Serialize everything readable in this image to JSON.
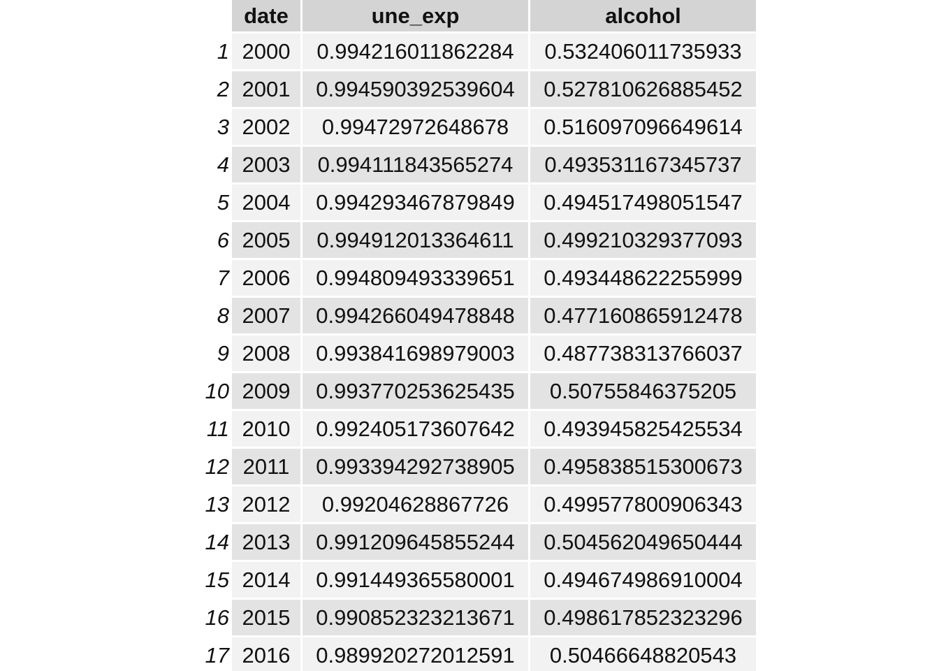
{
  "table": {
    "columns": [
      "date",
      "une_exp",
      "alcohol"
    ],
    "rows": [
      {
        "index": "1",
        "date": "2000",
        "une_exp": "0.994216011862284",
        "alcohol": "0.532406011735933"
      },
      {
        "index": "2",
        "date": "2001",
        "une_exp": "0.994590392539604",
        "alcohol": "0.527810626885452"
      },
      {
        "index": "3",
        "date": "2002",
        "une_exp": "0.99472972648678",
        "alcohol": "0.516097096649614"
      },
      {
        "index": "4",
        "date": "2003",
        "une_exp": "0.994111843565274",
        "alcohol": "0.493531167345737"
      },
      {
        "index": "5",
        "date": "2004",
        "une_exp": "0.994293467879849",
        "alcohol": "0.494517498051547"
      },
      {
        "index": "6",
        "date": "2005",
        "une_exp": "0.994912013364611",
        "alcohol": "0.499210329377093"
      },
      {
        "index": "7",
        "date": "2006",
        "une_exp": "0.994809493339651",
        "alcohol": "0.493448622255999"
      },
      {
        "index": "8",
        "date": "2007",
        "une_exp": "0.994266049478848",
        "alcohol": "0.477160865912478"
      },
      {
        "index": "9",
        "date": "2008",
        "une_exp": "0.993841698979003",
        "alcohol": "0.487738313766037"
      },
      {
        "index": "10",
        "date": "2009",
        "une_exp": "0.993770253625435",
        "alcohol": "0.50755846375205"
      },
      {
        "index": "11",
        "date": "2010",
        "une_exp": "0.992405173607642",
        "alcohol": "0.493945825425534"
      },
      {
        "index": "12",
        "date": "2011",
        "une_exp": "0.993394292738905",
        "alcohol": "0.495838515300673"
      },
      {
        "index": "13",
        "date": "2012",
        "une_exp": "0.99204628867726",
        "alcohol": "0.499577800906343"
      },
      {
        "index": "14",
        "date": "2013",
        "une_exp": "0.991209645855244",
        "alcohol": "0.504562049650444"
      },
      {
        "index": "15",
        "date": "2014",
        "une_exp": "0.991449365580001",
        "alcohol": "0.494674986910004"
      },
      {
        "index": "16",
        "date": "2015",
        "une_exp": "0.990852323213671",
        "alcohol": "0.498617852323296"
      },
      {
        "index": "17",
        "date": "2016",
        "une_exp": "0.989920272012591",
        "alcohol": "0.50466648820543"
      }
    ]
  }
}
